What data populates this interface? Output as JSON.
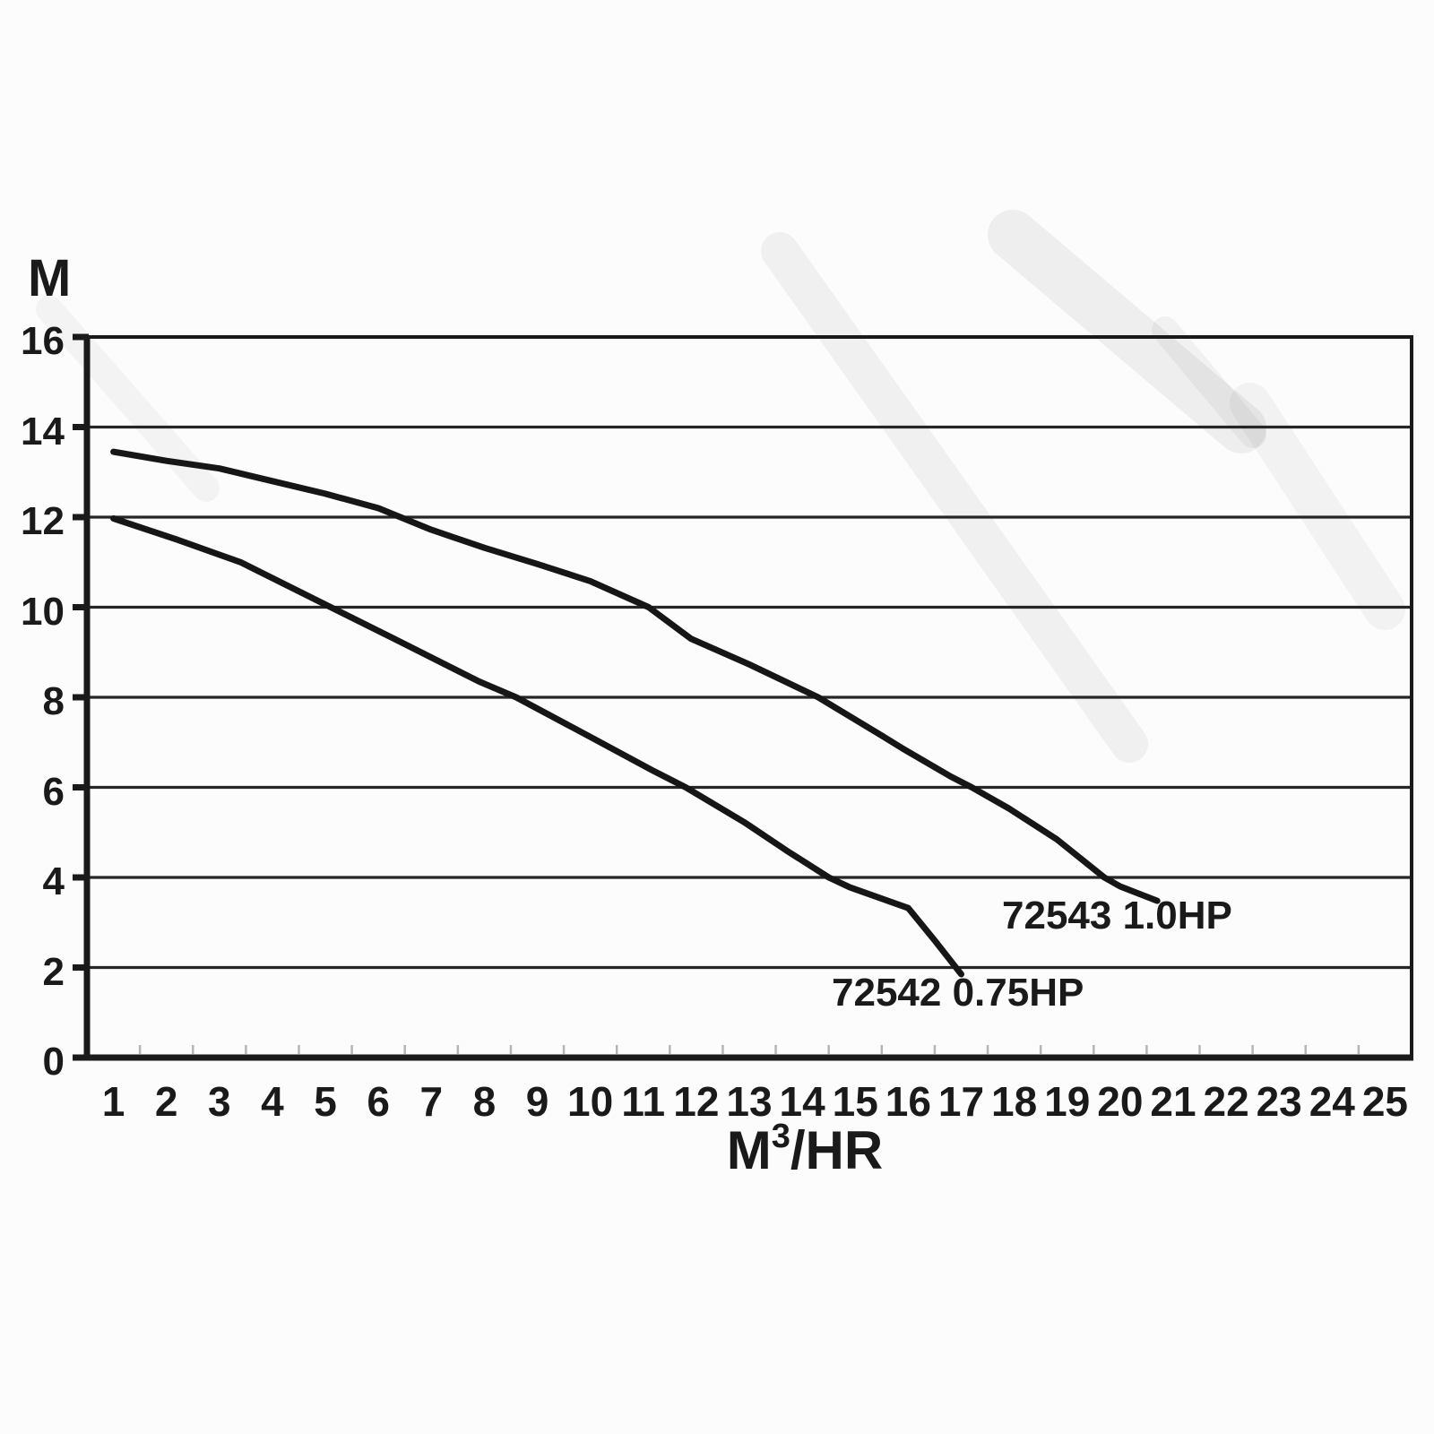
{
  "page": {
    "background_color": "#fcfcfc",
    "ink_color": "#1a1a1a",
    "curve_color": "#161616",
    "grid_color": "#262626",
    "minor_tick_color": "#b5b5b5"
  },
  "chart_data": {
    "type": "line",
    "title": "",
    "ylabel": "M",
    "xlabel_base": "M",
    "xlabel_sup": "3",
    "xlabel_rest": "/HR",
    "xlim": [
      0.5,
      25.5
    ],
    "ylim": [
      0,
      16
    ],
    "grid": true,
    "legend_position": "inline-labels",
    "x_tick_labels": [
      "1",
      "2",
      "3",
      "4",
      "5",
      "6",
      "7",
      "8",
      "9",
      "10",
      "11",
      "12",
      "13",
      "14",
      "15",
      "16",
      "17",
      "18",
      "19",
      "20",
      "21",
      "22",
      "23",
      "24",
      "25"
    ],
    "x_tick_values": [
      1,
      2,
      3,
      4,
      5,
      6,
      7,
      8,
      9,
      10,
      11,
      12,
      13,
      14,
      15,
      16,
      17,
      18,
      19,
      20,
      21,
      22,
      23,
      24,
      25
    ],
    "x_minor_ticks": [
      1.5,
      2.5,
      3.5,
      4.5,
      5.5,
      6.5,
      7.5,
      8.5,
      9.5,
      10.5,
      11.5,
      12.5,
      13.5,
      14.5,
      15.5,
      16.5,
      17.5,
      18.5,
      19.5,
      20.5,
      21.5,
      22.5,
      23.5,
      24.5
    ],
    "y_ticks": [
      16,
      14,
      12,
      10,
      8,
      6,
      4,
      2,
      0
    ],
    "y_tick_labels": [
      "16",
      "14",
      "12",
      "10",
      "8",
      "6",
      "4",
      "2",
      "0"
    ],
    "gridlines_y": [
      2,
      4,
      6,
      8,
      10,
      12,
      14
    ],
    "series": [
      {
        "name": "72543",
        "label": "72543 1.0HP",
        "points": [
          [
            1,
            13.45
          ],
          [
            2,
            13.25
          ],
          [
            3,
            13.08
          ],
          [
            4,
            12.8
          ],
          [
            5,
            12.52
          ],
          [
            6,
            12.2
          ],
          [
            7,
            11.72
          ],
          [
            8,
            11.32
          ],
          [
            9,
            10.96
          ],
          [
            10,
            10.58
          ],
          [
            11.1,
            10.0
          ],
          [
            11.5,
            9.65
          ],
          [
            11.9,
            9.3
          ],
          [
            13,
            8.73
          ],
          [
            14.3,
            8.0
          ],
          [
            15.5,
            7.15
          ],
          [
            15.9,
            6.86
          ],
          [
            16.8,
            6.24
          ],
          [
            17.2,
            6.0
          ],
          [
            17.9,
            5.53
          ],
          [
            18.8,
            4.85
          ],
          [
            19.7,
            4.0
          ],
          [
            20.0,
            3.8
          ],
          [
            20.7,
            3.48
          ]
        ]
      },
      {
        "name": "72542",
        "label": "72542 0.75HP",
        "points": [
          [
            1,
            11.97
          ],
          [
            2.2,
            11.5
          ],
          [
            3.4,
            11.0
          ],
          [
            5.1,
            10.0
          ],
          [
            6.3,
            9.3
          ],
          [
            7.9,
            8.35
          ],
          [
            8.6,
            8.0
          ],
          [
            10,
            7.12
          ],
          [
            11.2,
            6.36
          ],
          [
            11.8,
            6.0
          ],
          [
            12.9,
            5.23
          ],
          [
            13.7,
            4.6
          ],
          [
            14.5,
            4.0
          ],
          [
            14.9,
            3.78
          ],
          [
            16.0,
            3.32
          ],
          [
            16.5,
            2.6
          ],
          [
            16.9,
            2.0
          ],
          [
            17.0,
            1.85
          ]
        ]
      }
    ]
  }
}
